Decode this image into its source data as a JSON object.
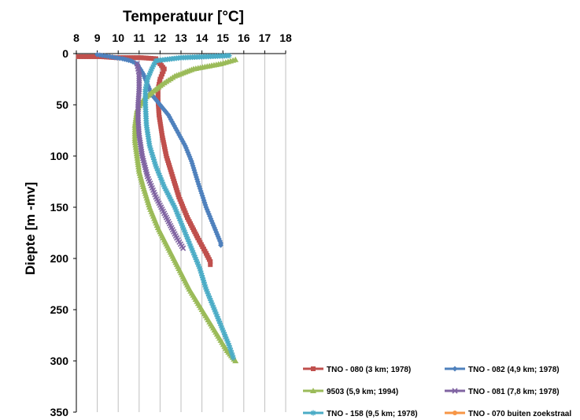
{
  "chart_data": {
    "type": "line",
    "title": "Temperatuur [°C]",
    "xlabel": "Temperatuur [°C]",
    "ylabel": "Diepte [m -mv]",
    "xlim": [
      8,
      18
    ],
    "ylim": [
      0,
      350
    ],
    "y_inverted": true,
    "x_axis_position": "top",
    "xticks": [
      8,
      9,
      10,
      11,
      12,
      13,
      14,
      15,
      16,
      17,
      18
    ],
    "yticks": [
      0,
      50,
      100,
      150,
      200,
      250,
      300,
      350
    ],
    "grid": "vertical",
    "legend_position": "bottom-right",
    "series": [
      {
        "name": "TNO - 080 (3 km; 1978)",
        "color": "#c0504d",
        "marker": "square",
        "points": [
          [
            8.1,
            3
          ],
          [
            8.6,
            3
          ],
          [
            9.2,
            3
          ],
          [
            9.9,
            4
          ],
          [
            10.5,
            4
          ],
          [
            11.1,
            4
          ],
          [
            11.8,
            5
          ],
          [
            12.0,
            10
          ],
          [
            12.2,
            15
          ],
          [
            12.1,
            20
          ],
          [
            12.0,
            25
          ],
          [
            11.9,
            35
          ],
          [
            11.9,
            45
          ],
          [
            11.95,
            60
          ],
          [
            12.1,
            80
          ],
          [
            12.3,
            100
          ],
          [
            12.6,
            120
          ],
          [
            12.9,
            140
          ],
          [
            13.3,
            160
          ],
          [
            13.8,
            180
          ],
          [
            14.2,
            195
          ],
          [
            14.4,
            203
          ],
          [
            14.4,
            206
          ]
        ]
      },
      {
        "name": "TNO - 082 (4,9 km; 1978)",
        "color": "#4f81bd",
        "marker": "diamond",
        "points": [
          [
            9.0,
            1
          ],
          [
            9.6,
            3
          ],
          [
            10.2,
            5
          ],
          [
            10.6,
            7
          ],
          [
            10.9,
            10
          ],
          [
            11.2,
            20
          ],
          [
            11.4,
            30
          ],
          [
            11.6,
            40
          ],
          [
            12.0,
            50
          ],
          [
            12.4,
            60
          ],
          [
            12.8,
            75
          ],
          [
            13.2,
            90
          ],
          [
            13.5,
            105
          ],
          [
            13.8,
            125
          ],
          [
            14.2,
            150
          ],
          [
            14.6,
            170
          ],
          [
            14.9,
            185
          ],
          [
            14.9,
            187
          ]
        ]
      },
      {
        "name": "9503 (5,9 km; 1994)",
        "color": "#9bbb59",
        "marker": "triangle",
        "points": [
          [
            15.6,
            6
          ],
          [
            14.9,
            10
          ],
          [
            13.6,
            15
          ],
          [
            12.7,
            22
          ],
          [
            12.1,
            30
          ],
          [
            11.6,
            38
          ],
          [
            11.2,
            45
          ],
          [
            10.9,
            55
          ],
          [
            10.8,
            70
          ],
          [
            10.8,
            85
          ],
          [
            10.9,
            100
          ],
          [
            11.0,
            115
          ],
          [
            11.2,
            130
          ],
          [
            11.5,
            150
          ],
          [
            11.9,
            170
          ],
          [
            12.4,
            190
          ],
          [
            12.9,
            210
          ],
          [
            13.4,
            230
          ],
          [
            14.0,
            250
          ],
          [
            14.6,
            270
          ],
          [
            15.2,
            290
          ],
          [
            15.6,
            300
          ]
        ]
      },
      {
        "name": "TNO - 081 (7,8 km; 1978)",
        "color": "#8064a2",
        "marker": "x",
        "points": [
          [
            10.9,
            10
          ],
          [
            11.0,
            20
          ],
          [
            11.0,
            35
          ],
          [
            10.95,
            50
          ],
          [
            10.95,
            65
          ],
          [
            11.0,
            80
          ],
          [
            11.15,
            100
          ],
          [
            11.4,
            120
          ],
          [
            11.8,
            140
          ],
          [
            12.3,
            160
          ],
          [
            12.8,
            180
          ],
          [
            13.1,
            190
          ]
        ]
      },
      {
        "name": "TNO - 158 (9,5 km; 1978)",
        "color": "#4bacc6",
        "marker": "star",
        "points": [
          [
            15.3,
            2
          ],
          [
            14.2,
            3
          ],
          [
            13.0,
            4
          ],
          [
            11.8,
            7
          ],
          [
            11.6,
            15
          ],
          [
            11.4,
            25
          ],
          [
            11.3,
            35
          ],
          [
            11.3,
            50
          ],
          [
            11.35,
            70
          ],
          [
            11.5,
            90
          ],
          [
            11.8,
            110
          ],
          [
            12.2,
            130
          ],
          [
            12.7,
            150
          ],
          [
            13.1,
            170
          ],
          [
            13.5,
            190
          ],
          [
            13.9,
            210
          ],
          [
            14.2,
            230
          ],
          [
            14.6,
            250
          ],
          [
            15.0,
            270
          ],
          [
            15.3,
            285
          ],
          [
            15.5,
            297
          ]
        ]
      },
      {
        "name": "TNO - 070 buiten zoekstraal",
        "color": "#f79646",
        "marker": "circle",
        "points": []
      }
    ]
  }
}
